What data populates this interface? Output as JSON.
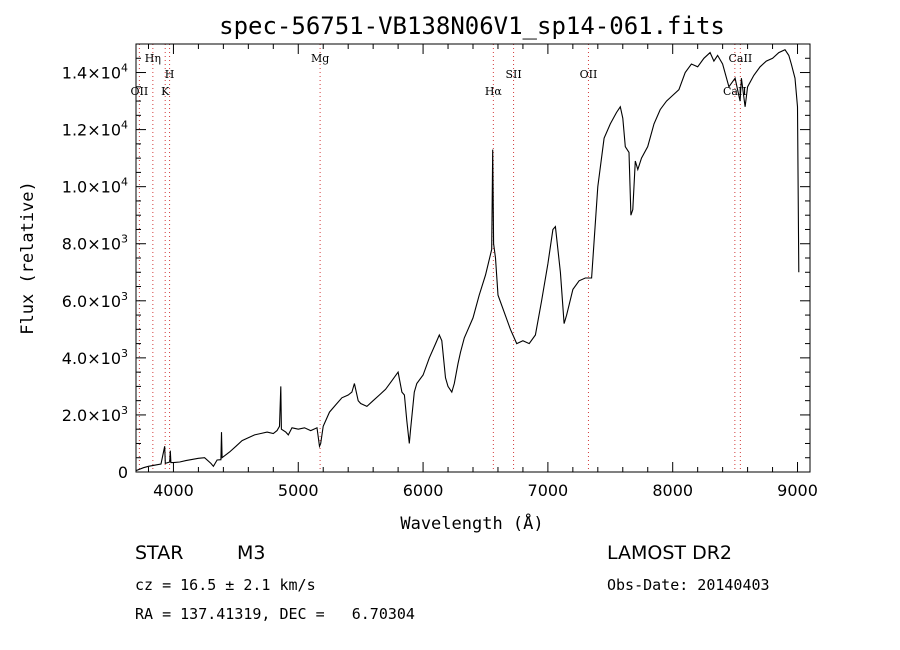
{
  "chart_data": {
    "type": "line",
    "title": "spec-56751-VB138N06V1_sp14-061.fits",
    "xlabel": "Wavelength (Å)",
    "ylabel": "Flux (relative)",
    "xlim": [
      3700,
      9100
    ],
    "ylim": [
      0,
      15000
    ],
    "x_ticks": [
      4000,
      5000,
      6000,
      7000,
      8000,
      9000
    ],
    "x_tick_labels": [
      "4000",
      "5000",
      "6000",
      "7000",
      "8000",
      "9000"
    ],
    "y_ticks": [
      {
        "value": 0,
        "mantissa": "0",
        "exp": ""
      },
      {
        "value": 2000,
        "mantissa": "2.0×10",
        "exp": "3"
      },
      {
        "value": 4000,
        "mantissa": "4.0×10",
        "exp": "3"
      },
      {
        "value": 6000,
        "mantissa": "6.0×10",
        "exp": "3"
      },
      {
        "value": 8000,
        "mantissa": "8.0×10",
        "exp": "3"
      },
      {
        "value": 10000,
        "mantissa": "1.0×10",
        "exp": "4"
      },
      {
        "value": 12000,
        "mantissa": "1.2×10",
        "exp": "4"
      },
      {
        "value": 14000,
        "mantissa": "1.4×10",
        "exp": "4"
      }
    ],
    "grid": false,
    "series": [
      {
        "points": [
          [
            3700,
            50
          ],
          [
            3760,
            150
          ],
          [
            3800,
            200
          ],
          [
            3860,
            250
          ],
          [
            3900,
            280
          ],
          [
            3930,
            900
          ],
          [
            3935,
            300
          ],
          [
            3970,
            350
          ],
          [
            3975,
            750
          ],
          [
            3980,
            330
          ],
          [
            4000,
            330
          ],
          [
            4050,
            350
          ],
          [
            4100,
            400
          ],
          [
            4200,
            480
          ],
          [
            4250,
            500
          ],
          [
            4300,
            300
          ],
          [
            4320,
            200
          ],
          [
            4350,
            420
          ],
          [
            4380,
            430
          ],
          [
            4385,
            1400
          ],
          [
            4390,
            500
          ],
          [
            4450,
            700
          ],
          [
            4500,
            900
          ],
          [
            4550,
            1100
          ],
          [
            4600,
            1200
          ],
          [
            4650,
            1300
          ],
          [
            4700,
            1350
          ],
          [
            4750,
            1400
          ],
          [
            4800,
            1350
          ],
          [
            4830,
            1450
          ],
          [
            4850,
            1600
          ],
          [
            4860,
            3000
          ],
          [
            4865,
            1500
          ],
          [
            4900,
            1400
          ],
          [
            4920,
            1300
          ],
          [
            4950,
            1550
          ],
          [
            5000,
            1500
          ],
          [
            5050,
            1550
          ],
          [
            5100,
            1450
          ],
          [
            5150,
            1550
          ],
          [
            5170,
            900
          ],
          [
            5180,
            1000
          ],
          [
            5200,
            1600
          ],
          [
            5250,
            2100
          ],
          [
            5300,
            2350
          ],
          [
            5350,
            2600
          ],
          [
            5400,
            2700
          ],
          [
            5430,
            2800
          ],
          [
            5450,
            3100
          ],
          [
            5480,
            2500
          ],
          [
            5500,
            2400
          ],
          [
            5550,
            2300
          ],
          [
            5600,
            2500
          ],
          [
            5650,
            2700
          ],
          [
            5700,
            2900
          ],
          [
            5750,
            3200
          ],
          [
            5800,
            3500
          ],
          [
            5830,
            2800
          ],
          [
            5850,
            2700
          ],
          [
            5870,
            1800
          ],
          [
            5890,
            1000
          ],
          [
            5900,
            1500
          ],
          [
            5930,
            2800
          ],
          [
            5950,
            3100
          ],
          [
            6000,
            3400
          ],
          [
            6050,
            4000
          ],
          [
            6100,
            4500
          ],
          [
            6130,
            4800
          ],
          [
            6150,
            4600
          ],
          [
            6180,
            3300
          ],
          [
            6200,
            3000
          ],
          [
            6230,
            2800
          ],
          [
            6250,
            3100
          ],
          [
            6280,
            3800
          ],
          [
            6300,
            4200
          ],
          [
            6330,
            4700
          ],
          [
            6350,
            4900
          ],
          [
            6400,
            5400
          ],
          [
            6450,
            6200
          ],
          [
            6500,
            6900
          ],
          [
            6550,
            7800
          ],
          [
            6558,
            11300
          ],
          [
            6565,
            8000
          ],
          [
            6580,
            7500
          ],
          [
            6600,
            6200
          ],
          [
            6650,
            5600
          ],
          [
            6700,
            5000
          ],
          [
            6730,
            4700
          ],
          [
            6750,
            4500
          ],
          [
            6800,
            4600
          ],
          [
            6850,
            4500
          ],
          [
            6900,
            4800
          ],
          [
            6950,
            6000
          ],
          [
            7000,
            7300
          ],
          [
            7040,
            8500
          ],
          [
            7060,
            8600
          ],
          [
            7100,
            7000
          ],
          [
            7130,
            5200
          ],
          [
            7150,
            5500
          ],
          [
            7200,
            6400
          ],
          [
            7250,
            6700
          ],
          [
            7300,
            6800
          ],
          [
            7350,
            6800
          ],
          [
            7400,
            10000
          ],
          [
            7450,
            11700
          ],
          [
            7500,
            12200
          ],
          [
            7550,
            12600
          ],
          [
            7580,
            12800
          ],
          [
            7600,
            12400
          ],
          [
            7620,
            11400
          ],
          [
            7650,
            11200
          ],
          [
            7665,
            9000
          ],
          [
            7680,
            9200
          ],
          [
            7700,
            10900
          ],
          [
            7720,
            10600
          ],
          [
            7750,
            11000
          ],
          [
            7800,
            11400
          ],
          [
            7850,
            12200
          ],
          [
            7900,
            12700
          ],
          [
            7950,
            13000
          ],
          [
            8000,
            13200
          ],
          [
            8050,
            13400
          ],
          [
            8100,
            14000
          ],
          [
            8150,
            14300
          ],
          [
            8200,
            14200
          ],
          [
            8250,
            14500
          ],
          [
            8300,
            14700
          ],
          [
            8330,
            14400
          ],
          [
            8360,
            14600
          ],
          [
            8400,
            14300
          ],
          [
            8450,
            13500
          ],
          [
            8500,
            13800
          ],
          [
            8520,
            13400
          ],
          [
            8540,
            13000
          ],
          [
            8550,
            13800
          ],
          [
            8580,
            12800
          ],
          [
            8600,
            13500
          ],
          [
            8650,
            13900
          ],
          [
            8700,
            14200
          ],
          [
            8750,
            14400
          ],
          [
            8800,
            14500
          ],
          [
            8850,
            14700
          ],
          [
            8900,
            14800
          ],
          [
            8930,
            14600
          ],
          [
            8950,
            14300
          ],
          [
            8980,
            13800
          ],
          [
            9000,
            12800
          ],
          [
            9010,
            7000
          ]
        ]
      }
    ],
    "spectral_lines": [
      {
        "label": "Hη",
        "x": 3835,
        "label_level": 1
      },
      {
        "label": "OII",
        "x": 3727,
        "label_level": 3
      },
      {
        "label": "H",
        "x": 3969,
        "label_level": 2
      },
      {
        "label": "K",
        "x": 3934,
        "label_level": 3
      },
      {
        "label": "Mg",
        "x": 5175,
        "label_level": 1
      },
      {
        "label": "Hα",
        "x": 6563,
        "label_level": 3
      },
      {
        "label": "OII",
        "x": 7325,
        "label_level": 2
      },
      {
        "label": "SII",
        "x": 6725,
        "label_level": 2
      },
      {
        "label": "CaII",
        "x": 8542,
        "label_level": 1
      },
      {
        "label": "CaII",
        "x": 8498,
        "label_level": 3
      }
    ]
  },
  "info": {
    "object_type": "STAR",
    "subclass": "M3",
    "survey": "LAMOST DR2",
    "cz": "cz = 16.5 ± 2.1 km/s",
    "obs_date": "Obs-Date: 20140403",
    "coords": "RA = 137.41319, DEC =   6.70304"
  }
}
